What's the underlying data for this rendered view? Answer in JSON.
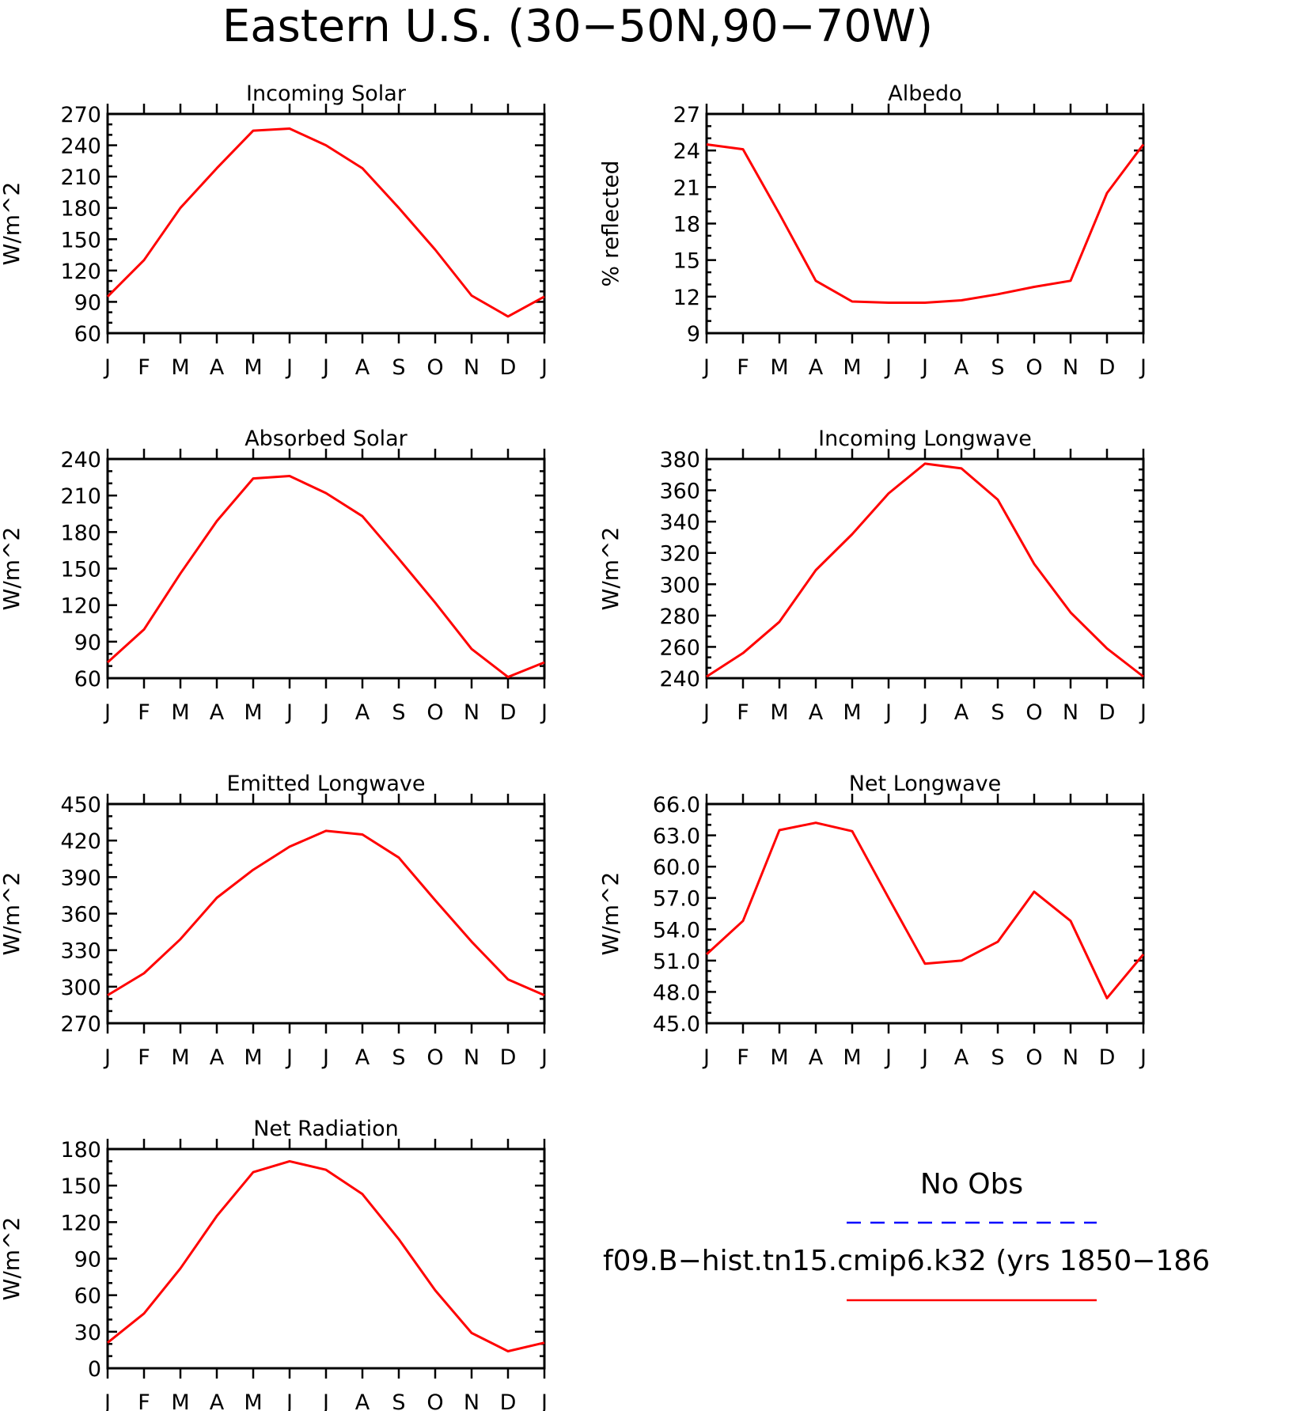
{
  "title": "Eastern U.S. (30−50N,90−70W)",
  "colors": {
    "model": "#ff0000",
    "obs": "#0000ff",
    "axis": "#000000"
  },
  "legend": {
    "obs_label": "No Obs",
    "model_label": "f09.B−hist.tn15.cmip6.k32 (yrs 1850−186"
  },
  "chart_data": [
    {
      "type": "line",
      "title": "Incoming Solar",
      "xlabel": "",
      "ylabel": "W/m^2",
      "x_ticks": [
        "J",
        "F",
        "M",
        "A",
        "M",
        "J",
        "J",
        "A",
        "S",
        "O",
        "N",
        "D",
        "J"
      ],
      "ylim": [
        60,
        270
      ],
      "y_ticks": [
        "60",
        "90",
        "120",
        "150",
        "180",
        "210",
        "240",
        "270"
      ],
      "series": [
        {
          "values": [
            95,
            130,
            180,
            218,
            254,
            256,
            240,
            218,
            180,
            140,
            96,
            76,
            95
          ]
        }
      ]
    },
    {
      "type": "line",
      "title": "Albedo",
      "xlabel": "",
      "ylabel": "% reflected",
      "x_ticks": [
        "J",
        "F",
        "M",
        "A",
        "M",
        "J",
        "J",
        "A",
        "S",
        "O",
        "N",
        "D",
        "J"
      ],
      "ylim": [
        9,
        27
      ],
      "y_ticks": [
        "9",
        "12",
        "15",
        "18",
        "21",
        "24",
        "27"
      ],
      "series": [
        {
          "values": [
            24.5,
            24.1,
            18.8,
            13.3,
            11.6,
            11.5,
            11.5,
            11.7,
            12.2,
            12.8,
            13.3,
            20.5,
            24.5
          ]
        }
      ]
    },
    {
      "type": "line",
      "title": "Absorbed Solar",
      "xlabel": "",
      "ylabel": "W/m^2",
      "x_ticks": [
        "J",
        "F",
        "M",
        "A",
        "M",
        "J",
        "J",
        "A",
        "S",
        "O",
        "N",
        "D",
        "J"
      ],
      "ylim": [
        60,
        240
      ],
      "y_ticks": [
        "60",
        "90",
        "120",
        "150",
        "180",
        "210",
        "240"
      ],
      "series": [
        {
          "values": [
            73,
            100,
            146,
            189,
            224,
            226,
            212,
            193,
            158,
            122,
            84,
            61,
            73
          ]
        }
      ]
    },
    {
      "type": "line",
      "title": "Incoming Longwave",
      "xlabel": "",
      "ylabel": "W/m^2",
      "x_ticks": [
        "J",
        "F",
        "M",
        "A",
        "M",
        "J",
        "J",
        "A",
        "S",
        "O",
        "N",
        "D",
        "J"
      ],
      "ylim": [
        240,
        380
      ],
      "y_ticks": [
        "240",
        "260",
        "280",
        "300",
        "320",
        "340",
        "360",
        "380"
      ],
      "series": [
        {
          "values": [
            241,
            256,
            276,
            309,
            332,
            358,
            377,
            374,
            354,
            313,
            282,
            259,
            241
          ]
        }
      ]
    },
    {
      "type": "line",
      "title": "Emitted Longwave",
      "xlabel": "",
      "ylabel": "W/m^2",
      "x_ticks": [
        "J",
        "F",
        "M",
        "A",
        "M",
        "J",
        "J",
        "A",
        "S",
        "O",
        "N",
        "D",
        "J"
      ],
      "ylim": [
        270,
        450
      ],
      "y_ticks": [
        "270",
        "300",
        "330",
        "360",
        "390",
        "420",
        "450"
      ],
      "series": [
        {
          "values": [
            293,
            311,
            339,
            373,
            396,
            415,
            428,
            425,
            406,
            371,
            337,
            306,
            293
          ]
        }
      ]
    },
    {
      "type": "line",
      "title": "Net Longwave",
      "xlabel": "",
      "ylabel": "W/m^2",
      "x_ticks": [
        "J",
        "F",
        "M",
        "A",
        "M",
        "J",
        "J",
        "A",
        "S",
        "O",
        "N",
        "D",
        "J"
      ],
      "ylim": [
        45,
        66
      ],
      "y_ticks": [
        "45.0",
        "48.0",
        "51.0",
        "54.0",
        "57.0",
        "60.0",
        "63.0",
        "66.0"
      ],
      "series": [
        {
          "values": [
            51.6,
            54.8,
            63.5,
            64.2,
            63.4,
            57.0,
            50.7,
            51.0,
            52.8,
            57.6,
            54.8,
            47.4,
            51.6
          ]
        }
      ]
    },
    {
      "type": "line",
      "title": "Net Radiation",
      "xlabel": "",
      "ylabel": "W/m^2",
      "x_ticks": [
        "J",
        "F",
        "M",
        "A",
        "M",
        "J",
        "J",
        "A",
        "S",
        "O",
        "N",
        "D",
        "J"
      ],
      "ylim": [
        0,
        180
      ],
      "y_ticks": [
        "0",
        "30",
        "60",
        "90",
        "120",
        "150",
        "180"
      ],
      "series": [
        {
          "values": [
            21,
            45,
            82,
            125,
            161,
            170,
            163,
            143,
            106,
            64,
            29,
            14,
            21
          ]
        }
      ]
    }
  ]
}
